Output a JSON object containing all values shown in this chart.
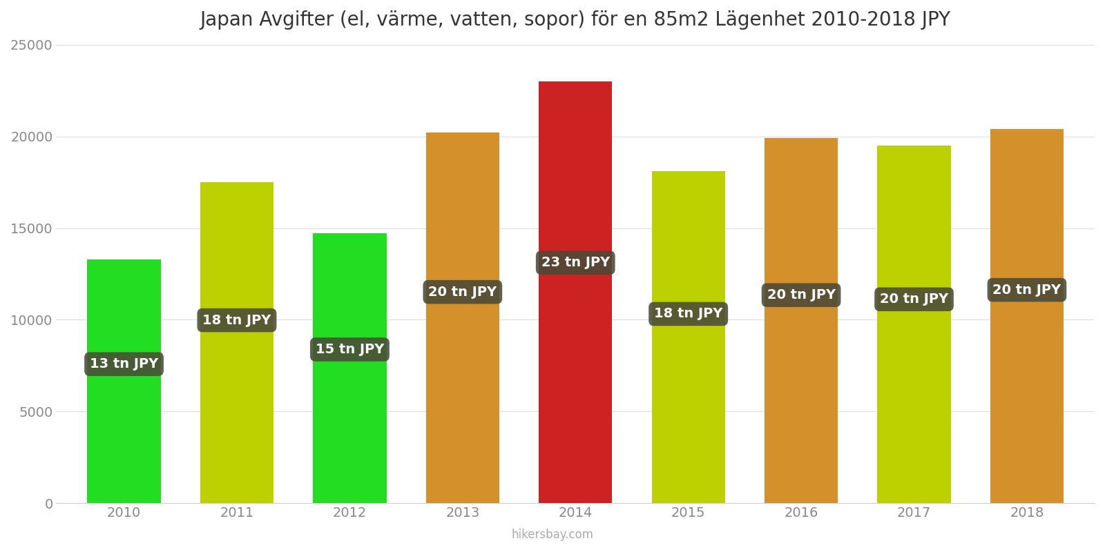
{
  "years": [
    2010,
    2011,
    2012,
    2013,
    2014,
    2015,
    2016,
    2017,
    2018
  ],
  "values": [
    13300,
    17500,
    14700,
    20200,
    23000,
    18100,
    19900,
    19500,
    20400
  ],
  "bar_colors": [
    "#22dd22",
    "#bdd000",
    "#22dd22",
    "#d4902a",
    "#cc2222",
    "#bdd000",
    "#d4902a",
    "#bdd000",
    "#d4902a"
  ],
  "labels": [
    "13 tn JPY",
    "18 tn JPY",
    "15 tn JPY",
    "20 tn JPY",
    "23 tn JPY",
    "18 tn JPY",
    "20 tn JPY",
    "20 tn JPY",
    "20 tn JPY"
  ],
  "title": "Japan Avgifter (el, värme, vatten, sopor) för en 85m2 Lägenhet 2010-2018 JPY",
  "ylim": [
    0,
    25000
  ],
  "yticks": [
    0,
    5000,
    10000,
    15000,
    20000,
    25000
  ],
  "background_color": "#ffffff",
  "label_box_color": "#4a4a38",
  "label_text_color": "#ffffff",
  "title_fontsize": 20,
  "tick_fontsize": 14,
  "label_fontsize": 14,
  "watermark": "hikersbay.com",
  "bar_width": 0.65
}
